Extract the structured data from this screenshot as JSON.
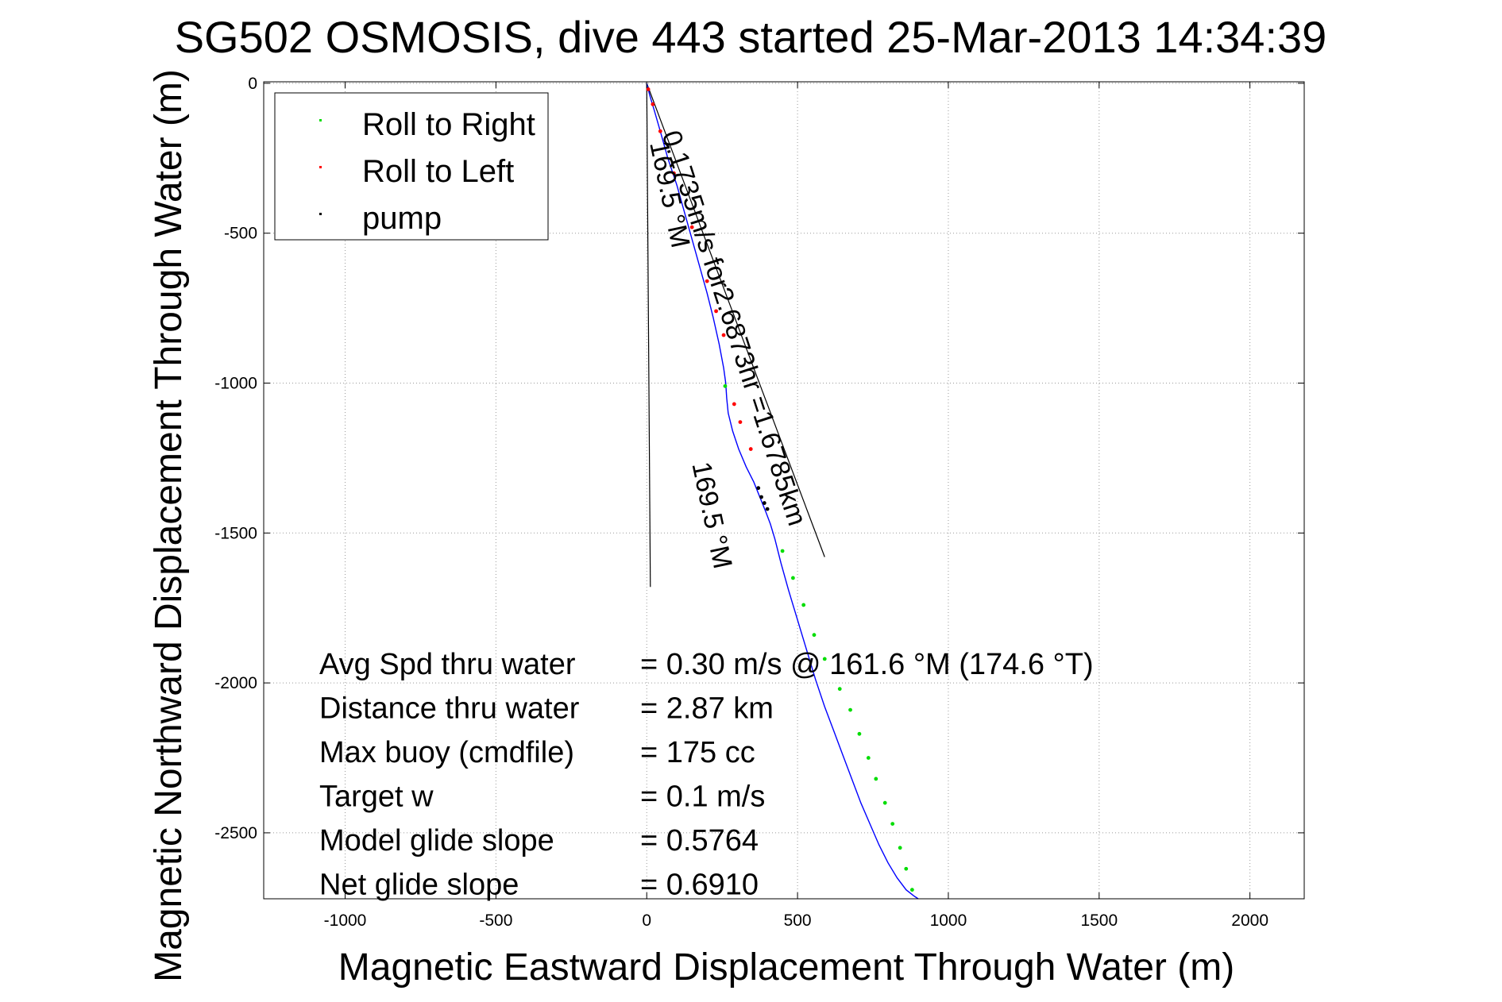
{
  "chart_data": {
    "type": "line",
    "title": "SG502 OSMOSIS, dive 443 started 25-Mar-2013 14:34:39",
    "xlabel": "Magnetic Eastward Displacement Through Water (m)",
    "ylabel": "Magnetic Northward Displacement Through Water (m)",
    "xlim": [
      -1270,
      2180
    ],
    "ylim": [
      -2720,
      5
    ],
    "xticks": [
      -1000,
      -500,
      0,
      500,
      1000,
      1500,
      2000
    ],
    "yticks": [
      0,
      -500,
      -1000,
      -1500,
      -2000,
      -2500
    ],
    "grid": true,
    "legend_position": "top-left",
    "legend": [
      "Roll to Right",
      "Roll to Left",
      "pump"
    ],
    "series": [
      {
        "name": "track",
        "color": "#0000ff",
        "x": [
          0,
          10,
          25,
          45,
          70,
          100,
          125,
          150,
          175,
          200,
          220,
          240,
          255,
          262,
          265,
          270,
          285,
          305,
          330,
          355,
          375,
          395,
          410,
          425,
          445,
          470,
          500,
          530,
          560,
          590,
          620,
          650,
          680,
          710,
          740,
          770,
          800,
          830,
          860,
          885,
          900
        ],
        "y": [
          0,
          -40,
          -90,
          -160,
          -250,
          -340,
          -430,
          -520,
          -610,
          -700,
          -780,
          -870,
          -950,
          -1000,
          -1050,
          -1100,
          -1160,
          -1220,
          -1280,
          -1330,
          -1380,
          -1430,
          -1470,
          -1520,
          -1600,
          -1690,
          -1790,
          -1890,
          -1990,
          -2080,
          -2160,
          -2240,
          -2320,
          -2400,
          -2470,
          -2540,
          -2600,
          -2650,
          -2690,
          -2710,
          -2720
        ]
      },
      {
        "name": "Roll to Right",
        "color": "#00dd00",
        "x": [
          260,
          450,
          485,
          520,
          555,
          590,
          640,
          675,
          705,
          735,
          760,
          790,
          815,
          840,
          860,
          880
        ],
        "y": [
          -1010,
          -1560,
          -1650,
          -1740,
          -1840,
          -1920,
          -2020,
          -2090,
          -2170,
          -2250,
          -2320,
          -2400,
          -2470,
          -2550,
          -2620,
          -2690
        ]
      },
      {
        "name": "Roll to Left",
        "color": "#ff0000",
        "x": [
          5,
          20,
          45,
          90,
          150,
          200,
          230,
          255,
          290,
          310,
          345
        ],
        "y": [
          -20,
          -70,
          -160,
          -300,
          -480,
          -660,
          -760,
          -840,
          -1070,
          -1130,
          -1220
        ]
      },
      {
        "name": "pump",
        "color": "#000000",
        "x": [
          370,
          380,
          390,
          400
        ],
        "y": [
          -1350,
          -1380,
          -1400,
          -1420
        ]
      }
    ],
    "reference_lines": [
      {
        "x": [
          0,
          12
        ],
        "y": [
          0,
          -1680
        ]
      },
      {
        "x": [
          0,
          590
        ],
        "y": [
          0,
          -1580
        ]
      }
    ],
    "annotations": [
      {
        "text": "169.5 °M",
        "x": 10,
        "y": -200,
        "rotation_deg": 78
      },
      {
        "text": "0.1735m/s for2.6873hr =1.6785km",
        "x": 50,
        "y": -170,
        "rotation_deg": 72
      },
      {
        "text": "169.5 °M",
        "x": 150,
        "y": -1270,
        "rotation_deg": 78
      }
    ],
    "stats": [
      {
        "label": "Avg Spd thru water",
        "value": "=  0.30 m/s @ 161.6 °M (174.6 °T)"
      },
      {
        "label": "Distance thru water",
        "value": "=  2.87 km"
      },
      {
        "label": "Max buoy (cmdfile)",
        "value": "= 175 cc"
      },
      {
        "label": "Target w",
        "value": "= 0.1 m/s"
      },
      {
        "label": "Model glide slope",
        "value": "= 0.5764"
      },
      {
        "label": "Net glide slope",
        "value": "= 0.6910"
      }
    ]
  }
}
